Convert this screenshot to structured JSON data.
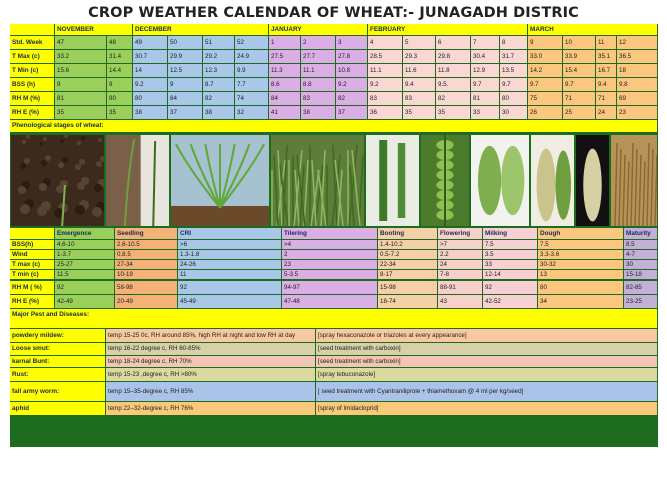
{
  "title": "CROP WEATHER CALENDAR OF WHEAT:- JUNAGADH DISTRIC",
  "months": [
    "NOVEMBER",
    "DECEMBER",
    "JANUARY",
    "FEBRUARY",
    "MARCH"
  ],
  "weather": [
    {
      "label": "Std. Week",
      "values": [
        "47",
        "48",
        "49",
        "50",
        "51",
        "52",
        "1",
        "2",
        "3",
        "4",
        "5",
        "6",
        "7",
        "8",
        "9",
        "10",
        "11",
        "12"
      ]
    },
    {
      "label": "T Max (c)",
      "values": [
        "33.2",
        "31.4",
        "30.7",
        "29.9",
        "29.2",
        "24.9",
        "27.5",
        "27.7",
        "27.8",
        "28.5",
        "29.3",
        "29.8",
        "30.4",
        "31.7",
        "33.0",
        "33.9",
        "35.1",
        "36.5"
      ]
    },
    {
      "label": "T Min (c)",
      "values": [
        "15.6",
        "14.4",
        "14",
        "12.5",
        "12.3",
        "9.9",
        "11.3",
        "11.1",
        "10.8",
        "11.1",
        "11.6",
        "11.8",
        "12.9",
        "13.5",
        "14.2",
        "15.4",
        "16.7",
        "18"
      ]
    },
    {
      "label": "BSS (h)",
      "values": [
        "9",
        "9",
        "9.2",
        "9",
        "8.7",
        "7.7",
        "8.6",
        "8.8",
        "9.2",
        "9.2",
        "9.4",
        "9.5.",
        "9.7",
        "9.7",
        "9.7",
        "9.7",
        "9.4",
        "9.8"
      ]
    },
    {
      "label": "RH M (%)",
      "values": [
        "81",
        "80",
        "80",
        "84",
        "82",
        "74",
        "84",
        "83",
        "82",
        "83",
        "83",
        "82",
        "81",
        "80",
        "75",
        "71",
        "71",
        "69"
      ]
    },
    {
      "label": "RH E (%)",
      "values": [
        "35",
        "35",
        "38",
        "37",
        "38",
        "32",
        "41",
        "38",
        "37",
        "36",
        "35",
        "35",
        "33",
        "30",
        "26",
        "25",
        "24",
        "23"
      ]
    }
  ],
  "phenology_title": "Phenological stages of wheat:",
  "stages": {
    "names": [
      "Emergence",
      "Seedling",
      "CRI",
      "Tilering",
      "Booting",
      "Flowering",
      "Milking",
      "Dough",
      "Maturity"
    ],
    "rows": [
      {
        "label": "BSS(h)",
        "values": [
          "4.6-10",
          "2.6-10.5",
          ">6",
          ">4",
          "1.4-10.2",
          ">7",
          "7.5",
          "7.5",
          "8.5"
        ]
      },
      {
        "label": "Wind",
        "values": [
          "1-3.7",
          "0.8.5",
          "1.3-1.8",
          "2",
          "0.5-7.2",
          "2.2",
          "3.5",
          "3.3-3.6",
          "4-7"
        ]
      },
      {
        "label": "T max (c)",
        "values": [
          "25-27",
          "27-34",
          "24-26",
          "23",
          "22-34",
          "24",
          "33",
          "30-32",
          "30"
        ]
      },
      {
        "label": "T min  (c)",
        "values": [
          "11.5",
          "10-19",
          "11",
          "5-3.5",
          "8-17",
          "7-8",
          "12-14",
          "13",
          "15-18"
        ]
      }
    ],
    "rh_rows": [
      {
        "label": "RH M ( %)",
        "values": [
          "92",
          "58-98",
          "92",
          "94-97",
          "15-98",
          "88-91",
          "92",
          "80",
          "82-85"
        ]
      },
      {
        "label": "RH E (%)",
        "values": [
          "42-49",
          "20-49",
          "45-49",
          "47-48",
          "18-74",
          "43",
          "42-52",
          "34",
          "23-25"
        ]
      }
    ]
  },
  "pest_title": "Major Pest and Diseases:",
  "pests": [
    {
      "name": "powdery mildew:",
      "condition": "temp 15-25 0c, RH around 85%, high RH at night and low RH at day",
      "control": "[spray hexaconazole or triazoles at every appearance]",
      "color": "#f8c9a0"
    },
    {
      "name": "Loose smut:",
      "condition": "temp 16-22 degree c, RH 60-85%",
      "control": "[seed treatment with carboxin]",
      "color": "#d8d0a8"
    },
    {
      "name": "karnal Bunt:",
      "condition": "temp 18-24 degree c, RH 70%",
      "control": "[seed treatment with carboxin]",
      "color": "#f3c6b4"
    },
    {
      "name": "Rust:",
      "condition": "temp 15-23 ,degree c, RH >80%",
      "control": "[spray tebuconazole]",
      "color": "#dcd9a0"
    },
    {
      "name": "fall army worm:",
      "condition": " temp 15–35-degree c, RH 85%",
      "control": "[ seed treatment with Cyantraniliprole + thiamethoxam @ 4 ml per kg/seed]",
      "color": "#a9c4e8"
    },
    {
      "name": "aphid",
      "condition": "temp 22–32-degree c, RH 76%",
      "control": "[spray of Imidacloprid]",
      "color": "#f9c97a"
    }
  ],
  "colors": {
    "board_border": "#1c6b1f",
    "label_yellow": "#ffff00",
    "nov": "#9bcf5b",
    "dec": "#a9c7e8",
    "jan": "#dcaee6",
    "feb": "#fbd7d4",
    "mar": "#fbc67e",
    "emergence": "#9bcf5b",
    "seedling": "#f6b179",
    "cri": "#a9c7e8",
    "tillering": "#dcaee6",
    "booting": "#f5cfa7",
    "flowering": "#f7d0cb",
    "milking": "#f8cfd2",
    "dough": "#fbc67e",
    "maturity": "#c3b0d8"
  },
  "photos": [
    "soil-emergence-photo",
    "seedling-photo",
    "cri-photo",
    "tillering-photo",
    "booting-photo",
    "flowering-photo",
    "milking-grain-photo",
    "dough-grain-photo",
    "maturity-photo"
  ]
}
